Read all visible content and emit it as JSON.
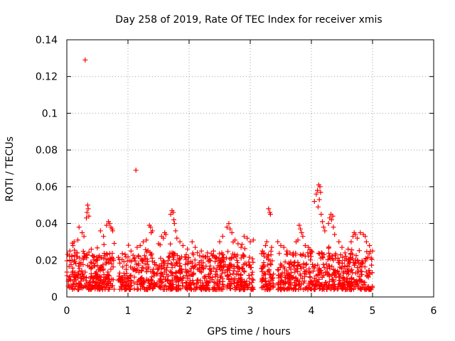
{
  "chart_data": {
    "type": "scatter",
    "title": "Day 258 of 2019, Rate Of TEC Index for receiver xmis",
    "xlabel": "GPS time / hours",
    "ylabel": "ROTI / TECUs",
    "xlim": [
      0,
      6
    ],
    "ylim": [
      0,
      0.14
    ],
    "x_ticks": [
      0,
      1,
      2,
      3,
      4,
      5,
      6
    ],
    "x_tick_labels": [
      "0",
      "1",
      "2",
      "3",
      "4",
      "5",
      "6"
    ],
    "y_ticks": [
      0,
      0.02,
      0.04,
      0.06,
      0.08,
      0.1,
      0.12,
      0.14
    ],
    "y_tick_labels": [
      "0",
      "0.02",
      "0.04",
      "0.06",
      "0.08",
      "0.1",
      "0.12",
      "0.14"
    ],
    "grid": true,
    "marker": "+",
    "color": "#ff0000",
    "data_extent_hours": [
      0,
      5
    ],
    "series": [
      {
        "name": "ROTI",
        "points": [
          [
            0.3,
            0.129
          ],
          [
            1.13,
            0.069
          ],
          [
            0.34,
            0.05
          ],
          [
            0.35,
            0.048
          ],
          [
            0.33,
            0.046
          ],
          [
            0.36,
            0.044
          ],
          [
            0.32,
            0.043
          ],
          [
            0.2,
            0.038
          ],
          [
            0.25,
            0.035
          ],
          [
            0.28,
            0.033
          ],
          [
            0.18,
            0.031
          ],
          [
            0.12,
            0.03
          ],
          [
            0.1,
            0.028
          ],
          [
            0.55,
            0.036
          ],
          [
            0.6,
            0.033
          ],
          [
            0.65,
            0.039
          ],
          [
            0.68,
            0.041
          ],
          [
            0.7,
            0.04
          ],
          [
            0.72,
            0.038
          ],
          [
            0.74,
            0.037
          ],
          [
            0.75,
            0.036
          ],
          [
            0.05,
            0.025
          ],
          [
            0.08,
            0.022
          ],
          [
            0.15,
            0.024
          ],
          [
            0.4,
            0.026
          ],
          [
            0.45,
            0.022
          ],
          [
            0.5,
            0.02
          ],
          [
            1.35,
            0.039
          ],
          [
            1.37,
            0.038
          ],
          [
            1.4,
            0.036
          ],
          [
            1.38,
            0.035
          ],
          [
            1.3,
            0.031
          ],
          [
            1.25,
            0.03
          ],
          [
            1.2,
            0.028
          ],
          [
            1.15,
            0.027
          ],
          [
            1.05,
            0.025
          ],
          [
            1.55,
            0.033
          ],
          [
            1.6,
            0.035
          ],
          [
            1.62,
            0.034
          ],
          [
            1.58,
            0.032
          ],
          [
            1.5,
            0.029
          ],
          [
            1.72,
            0.047
          ],
          [
            1.74,
            0.046
          ],
          [
            1.7,
            0.045
          ],
          [
            1.75,
            0.042
          ],
          [
            1.76,
            0.04
          ],
          [
            1.78,
            0.036
          ],
          [
            1.8,
            0.032
          ],
          [
            1.85,
            0.03
          ],
          [
            1.9,
            0.028
          ],
          [
            2.05,
            0.03
          ],
          [
            2.1,
            0.027
          ],
          [
            2.2,
            0.025
          ],
          [
            2.3,
            0.024
          ],
          [
            2.4,
            0.025
          ],
          [
            2.5,
            0.03
          ],
          [
            2.55,
            0.033
          ],
          [
            2.62,
            0.038
          ],
          [
            2.65,
            0.04
          ],
          [
            2.67,
            0.037
          ],
          [
            2.7,
            0.035
          ],
          [
            2.75,
            0.031
          ],
          [
            2.8,
            0.029
          ],
          [
            2.9,
            0.033
          ],
          [
            2.95,
            0.032
          ],
          [
            3.0,
            0.03
          ],
          [
            3.05,
            0.031
          ],
          [
            2.85,
            0.027
          ],
          [
            3.3,
            0.048
          ],
          [
            3.32,
            0.046
          ],
          [
            3.33,
            0.045
          ],
          [
            3.27,
            0.03
          ],
          [
            3.35,
            0.027
          ],
          [
            3.25,
            0.028
          ],
          [
            3.2,
            0.025
          ],
          [
            3.45,
            0.03
          ],
          [
            3.5,
            0.028
          ],
          [
            3.55,
            0.027
          ],
          [
            3.6,
            0.025
          ],
          [
            3.65,
            0.024
          ],
          [
            3.8,
            0.039
          ],
          [
            3.82,
            0.037
          ],
          [
            3.84,
            0.035
          ],
          [
            3.86,
            0.033
          ],
          [
            3.78,
            0.031
          ],
          [
            3.75,
            0.03
          ],
          [
            3.9,
            0.028
          ],
          [
            3.95,
            0.027
          ],
          [
            4.0,
            0.025
          ],
          [
            4.05,
            0.052
          ],
          [
            4.08,
            0.056
          ],
          [
            4.1,
            0.058
          ],
          [
            4.12,
            0.061
          ],
          [
            4.14,
            0.06
          ],
          [
            4.15,
            0.057
          ],
          [
            4.13,
            0.053
          ],
          [
            4.11,
            0.049
          ],
          [
            4.16,
            0.045
          ],
          [
            4.18,
            0.041
          ],
          [
            4.2,
            0.038
          ],
          [
            4.22,
            0.036
          ],
          [
            4.28,
            0.04
          ],
          [
            4.3,
            0.043
          ],
          [
            4.32,
            0.045
          ],
          [
            4.35,
            0.044
          ],
          [
            4.33,
            0.042
          ],
          [
            4.36,
            0.038
          ],
          [
            4.38,
            0.034
          ],
          [
            4.45,
            0.03
          ],
          [
            4.5,
            0.027
          ],
          [
            4.55,
            0.024
          ],
          [
            4.6,
            0.026
          ],
          [
            4.65,
            0.03
          ],
          [
            4.68,
            0.033
          ],
          [
            4.7,
            0.035
          ],
          [
            4.72,
            0.034
          ],
          [
            4.75,
            0.032
          ],
          [
            4.8,
            0.035
          ],
          [
            4.85,
            0.034
          ],
          [
            4.88,
            0.033
          ],
          [
            4.9,
            0.03
          ],
          [
            4.95,
            0.028
          ],
          [
            5.0,
            0.025
          ]
        ]
      }
    ]
  }
}
